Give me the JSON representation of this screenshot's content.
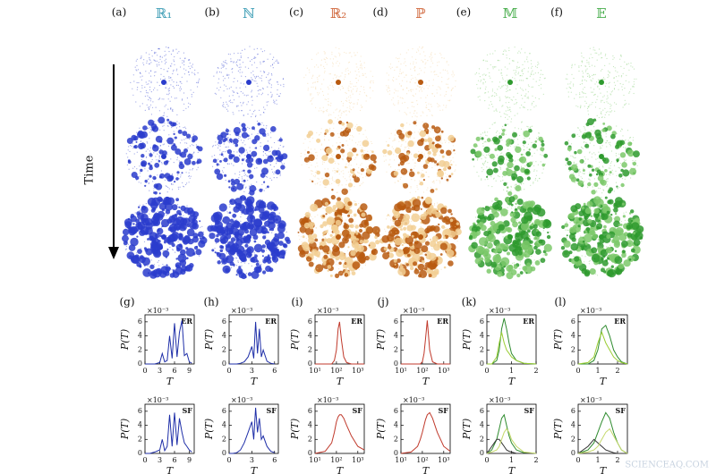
{
  "columns": [
    {
      "label": "(a)",
      "title": "ℝ₁",
      "title_color": "#3d9db5",
      "color": "#2a3ccc",
      "light": "#2a3ccc"
    },
    {
      "label": "(b)",
      "title": "ℕ",
      "title_color": "#3d9db5",
      "color": "#2a3ccc",
      "light": "#2a3ccc"
    },
    {
      "label": "(c)",
      "title": "ℝ₂",
      "title_color": "#d0673c",
      "color": "#b85a10",
      "light": "#f2cf94"
    },
    {
      "label": "(d)",
      "title": "ℙ",
      "title_color": "#d0673c",
      "color": "#b85a10",
      "light": "#f2cf94"
    },
    {
      "label": "(e)",
      "title": "𝕄",
      "title_color": "#4caf50",
      "color": "#2e9a2e",
      "light": "#7cc96b"
    },
    {
      "label": "(f)",
      "title": "𝔼",
      "title_color": "#4caf50",
      "color": "#2e9a2e",
      "light": "#7cc96b"
    }
  ],
  "time_label": "Time",
  "axis_text": {
    "y": "P(T)",
    "x": "T",
    "scale": "×10⁻³"
  },
  "plots": [
    {
      "label": "(g)",
      "tag": "ER",
      "log": false,
      "xlim": [
        0,
        10
      ],
      "ylim": [
        0,
        7
      ],
      "xticks": [
        0,
        3,
        6,
        9
      ],
      "yticks": [
        0,
        2,
        4,
        6
      ],
      "x": [
        0,
        1,
        2,
        3,
        3.5,
        4,
        4.5,
        5,
        5.5,
        6,
        6.5,
        7,
        7.5,
        8,
        8.5,
        9,
        9.5
      ],
      "series": [
        {
          "color": "#1f2fa8",
          "values": [
            0,
            0,
            0,
            0.2,
            1.5,
            0.3,
            0.5,
            4,
            0.8,
            5.8,
            1,
            4.5,
            6.2,
            1.2,
            1.5,
            0.3,
            0.1
          ]
        }
      ]
    },
    {
      "label": "(h)",
      "tag": "ER",
      "log": false,
      "xlim": [
        0,
        6.5
      ],
      "ylim": [
        0,
        7
      ],
      "xticks": [
        0,
        3,
        6
      ],
      "yticks": [
        0,
        2,
        4,
        6
      ],
      "x": [
        0,
        0.5,
        1,
        1.5,
        2,
        2.5,
        3,
        3.25,
        3.5,
        3.75,
        4,
        4.25,
        4.5,
        5,
        5.5,
        6
      ],
      "series": [
        {
          "color": "#1f2fa8",
          "values": [
            0,
            0,
            0,
            0.1,
            0.3,
            1,
            2.5,
            0.8,
            6,
            1.5,
            5,
            1,
            2,
            0.4,
            0.1,
            0
          ]
        }
      ]
    },
    {
      "label": "(i)",
      "tag": "ER",
      "log": true,
      "xlim": [
        10,
        2000
      ],
      "ylim": [
        0,
        7
      ],
      "xticks": [
        {
          "value": 10,
          "label": "10¹"
        },
        {
          "value": 100,
          "label": "10²"
        },
        {
          "value": 1000,
          "label": "10³"
        }
      ],
      "yticks": [
        0,
        2,
        4,
        6
      ],
      "x": [
        10,
        30,
        60,
        80,
        100,
        120,
        140,
        170,
        220,
        300,
        500,
        1000,
        2000
      ],
      "series": [
        {
          "color": "#c0392b",
          "values": [
            0,
            0,
            0,
            0.5,
            2,
            5,
            6,
            3.5,
            1,
            0.2,
            0,
            0,
            0
          ]
        }
      ]
    },
    {
      "label": "(j)",
      "tag": "ER",
      "log": true,
      "xlim": [
        10,
        2000
      ],
      "ylim": [
        0,
        7
      ],
      "xticks": [
        {
          "value": 10,
          "label": "10¹"
        },
        {
          "value": 100,
          "label": "10²"
        },
        {
          "value": 1000,
          "label": "10³"
        }
      ],
      "yticks": [
        0,
        2,
        4,
        6
      ],
      "x": [
        10,
        30,
        60,
        80,
        100,
        120,
        140,
        170,
        220,
        300,
        500,
        1000,
        2000
      ],
      "series": [
        {
          "color": "#c0392b",
          "values": [
            0,
            0,
            0,
            0,
            0.3,
            1.5,
            3.5,
            6.2,
            2,
            0.3,
            0,
            0,
            0
          ]
        }
      ]
    },
    {
      "label": "(k)",
      "tag": "ER",
      "log": false,
      "xlim": [
        0,
        2
      ],
      "ylim": [
        0,
        7
      ],
      "xticks": [
        0,
        1,
        2
      ],
      "yticks": [
        0,
        2,
        4,
        6
      ],
      "x": [
        0,
        0.2,
        0.4,
        0.5,
        0.6,
        0.7,
        0.8,
        0.9,
        1,
        1.2,
        1.5,
        2
      ],
      "series": [
        {
          "color": "#2e8b2e",
          "values": [
            0,
            0,
            0.5,
            2,
            5,
            6.5,
            5,
            3,
            1.5,
            0.5,
            0.1,
            0
          ]
        },
        {
          "color": "#9acd32",
          "values": [
            0,
            0,
            1,
            3,
            4.5,
            3,
            2,
            1.5,
            1,
            0.5,
            0.1,
            0
          ]
        }
      ]
    },
    {
      "label": "(l)",
      "tag": "ER",
      "log": false,
      "xlim": [
        0,
        2.5
      ],
      "ylim": [
        0,
        7
      ],
      "xticks": [
        0,
        1,
        2
      ],
      "yticks": [
        0,
        2,
        4,
        6
      ],
      "x": [
        0,
        0.5,
        0.8,
        1,
        1.2,
        1.4,
        1.6,
        1.8,
        2,
        2.2,
        2.5
      ],
      "series": [
        {
          "color": "#2e8b2e",
          "values": [
            0,
            0,
            0.5,
            2,
            5,
            5.5,
            4,
            2,
            1,
            0.3,
            0
          ]
        },
        {
          "color": "#9acd32",
          "values": [
            0,
            0.2,
            1,
            3,
            4.5,
            3,
            2,
            1,
            0.5,
            0.2,
            0
          ]
        }
      ]
    },
    {
      "tag": "SF",
      "log": false,
      "xlim": [
        0,
        10
      ],
      "ylim": [
        0,
        7
      ],
      "xticks": [
        0,
        3,
        6,
        9
      ],
      "yticks": [
        0,
        2,
        4,
        6
      ],
      "x": [
        0,
        1,
        2,
        3,
        3.5,
        4,
        4.5,
        5,
        5.5,
        6,
        6.5,
        7,
        7.5,
        8,
        8.5,
        9,
        9.5
      ],
      "series": [
        {
          "color": "#1f2fa8",
          "values": [
            0,
            0,
            0.2,
            0.5,
            2,
            0.4,
            1,
            5.5,
            1,
            5.8,
            1.2,
            5,
            3,
            1.5,
            1,
            0.5,
            0.2
          ]
        }
      ]
    },
    {
      "tag": "SF",
      "log": false,
      "xlim": [
        0,
        6.5
      ],
      "ylim": [
        0,
        7
      ],
      "xticks": [
        0,
        3,
        6
      ],
      "yticks": [
        0,
        2,
        4,
        6
      ],
      "x": [
        0,
        0.5,
        1,
        1.5,
        2,
        2.5,
        3,
        3.25,
        3.5,
        3.75,
        4,
        4.25,
        4.5,
        5,
        5.5,
        6
      ],
      "series": [
        {
          "color": "#1f2fa8",
          "values": [
            0,
            0,
            0.1,
            0.5,
            1.5,
            3,
            4.5,
            2,
            6.5,
            3,
            5,
            2,
            2.5,
            1,
            0.3,
            0.1
          ]
        }
      ]
    },
    {
      "tag": "SF",
      "log": true,
      "xlim": [
        10,
        2000
      ],
      "ylim": [
        0,
        7
      ],
      "xticks": [
        {
          "value": 10,
          "label": "10¹"
        },
        {
          "value": 100,
          "label": "10²"
        },
        {
          "value": 1000,
          "label": "10³"
        }
      ],
      "yticks": [
        0,
        2,
        4,
        6
      ],
      "x": [
        10,
        30,
        60,
        80,
        100,
        120,
        140,
        170,
        220,
        300,
        500,
        1000,
        2000
      ],
      "series": [
        {
          "color": "#c0392b",
          "values": [
            0,
            0.3,
            1.5,
            3,
            4.5,
            5.2,
            5.5,
            5.5,
            5,
            4,
            2.5,
            1,
            0.5
          ]
        }
      ]
    },
    {
      "tag": "SF",
      "log": true,
      "xlim": [
        10,
        2000
      ],
      "ylim": [
        0,
        7
      ],
      "xticks": [
        {
          "value": 10,
          "label": "10¹"
        },
        {
          "value": 100,
          "label": "10²"
        },
        {
          "value": 1000,
          "label": "10³"
        }
      ],
      "yticks": [
        0,
        2,
        4,
        6
      ],
      "x": [
        10,
        30,
        60,
        80,
        100,
        120,
        140,
        170,
        220,
        300,
        500,
        1000,
        2000
      ],
      "series": [
        {
          "color": "#c0392b",
          "values": [
            0,
            0.2,
            1,
            2,
            3,
            4,
            4.8,
            5.5,
            5.8,
            5,
            3,
            1,
            0.3
          ]
        }
      ]
    },
    {
      "tag": "SF",
      "log": false,
      "xlim": [
        0,
        2
      ],
      "ylim": [
        0,
        7
      ],
      "xticks": [
        0,
        1,
        2
      ],
      "yticks": [
        0,
        2,
        4,
        6
      ],
      "x": [
        0,
        0.2,
        0.4,
        0.5,
        0.6,
        0.7,
        0.8,
        0.9,
        1,
        1.2,
        1.5,
        2
      ],
      "series": [
        {
          "color": "#2e8b2e",
          "values": [
            0,
            0.5,
            2,
            3.5,
            5,
            5.5,
            4,
            2.5,
            1.5,
            0.5,
            0.1,
            0
          ]
        },
        {
          "color": "#333333",
          "values": [
            0,
            1,
            2,
            2,
            1.5,
            1,
            0.5,
            0.3,
            0.2,
            0,
            0,
            0
          ]
        },
        {
          "color": "#c5d96b",
          "values": [
            0,
            0.2,
            0.5,
            1,
            2,
            3,
            3.5,
            3,
            2,
            1,
            0.2,
            0
          ]
        }
      ]
    },
    {
      "tag": "SF",
      "log": false,
      "xlim": [
        0,
        2.5
      ],
      "ylim": [
        0,
        7
      ],
      "xticks": [
        0,
        1,
        2
      ],
      "yticks": [
        0,
        2,
        4,
        6
      ],
      "x": [
        0,
        0.5,
        0.8,
        1,
        1.2,
        1.4,
        1.6,
        1.8,
        2,
        2.2,
        2.5
      ],
      "series": [
        {
          "color": "#2e8b2e",
          "values": [
            0,
            0.5,
            1.5,
            3,
            4.5,
            5.8,
            5,
            3,
            1.5,
            0.5,
            0
          ]
        },
        {
          "color": "#333333",
          "values": [
            0,
            1,
            2,
            1.5,
            1,
            0.5,
            0.3,
            0.1,
            0,
            0,
            0
          ]
        },
        {
          "color": "#c5d96b",
          "values": [
            0,
            0.2,
            0.5,
            1,
            2,
            3,
            3.5,
            2.5,
            1.5,
            0.5,
            0
          ]
        }
      ]
    }
  ],
  "watermark": "SCIENCEAQ.COM"
}
